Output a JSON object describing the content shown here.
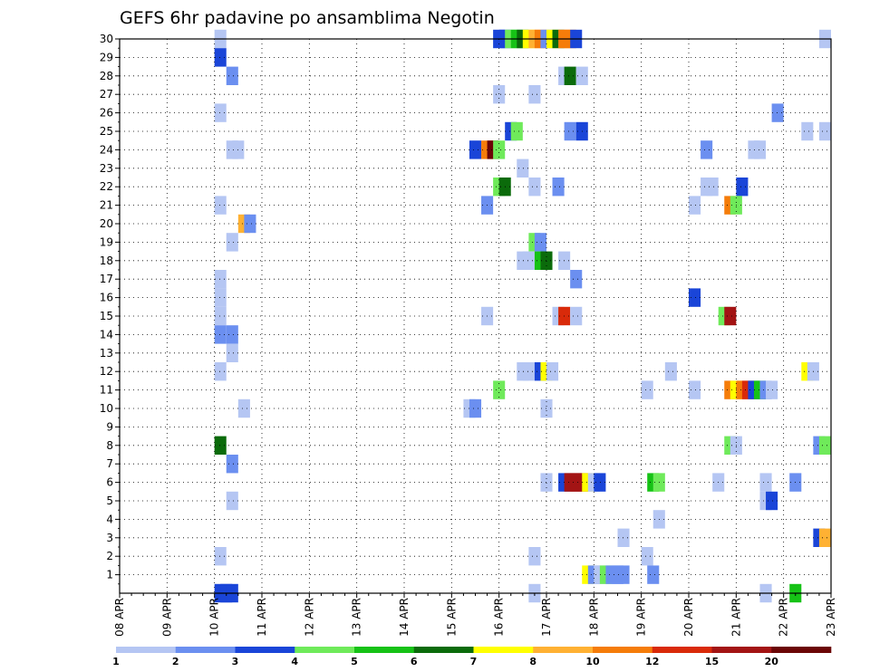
{
  "chart_data": {
    "type": "heatmap",
    "title": "GEFS 6hr padavine po ansamblima Negotin",
    "x_labels": [
      "08 APR",
      "09 APR",
      "10 APR",
      "11 APR",
      "12 APR",
      "13 APR",
      "14 APR",
      "15 APR",
      "16 APR",
      "17 APR",
      "18 APR",
      "19 APR",
      "20 APR",
      "21 APR",
      "22 APR",
      "23 APR"
    ],
    "x_range_steps": [
      0,
      60
    ],
    "y_labels": [
      "1",
      "2",
      "3",
      "4",
      "5",
      "6",
      "7",
      "8",
      "9",
      "10",
      "11",
      "12",
      "13",
      "14",
      "15",
      "16",
      "17",
      "18",
      "19",
      "20",
      "21",
      "22",
      "23",
      "24",
      "25",
      "26",
      "27",
      "28",
      "29",
      "30"
    ],
    "y_range": [
      0,
      30
    ],
    "grid": true,
    "colorbar": {
      "labels": [
        "1",
        "2",
        "3",
        "4",
        "5",
        "6",
        "7",
        "8",
        "10",
        "12",
        "15",
        "20"
      ],
      "colors": [
        "#b5c6f3",
        "#6b8ff0",
        "#1a45d8",
        "#6fea5a",
        "#16c216",
        "#0b6b0b",
        "#ffff00",
        "#ffb133",
        "#f57c0a",
        "#d92a0a",
        "#a31414",
        "#6b0606"
      ]
    },
    "cells": [
      [
        30,
        8.5,
        0
      ],
      [
        30,
        32,
        2
      ],
      [
        30,
        32.5,
        2
      ],
      [
        30,
        33,
        3
      ],
      [
        30,
        33.5,
        4
      ],
      [
        30,
        34,
        5
      ],
      [
        30,
        34.5,
        6
      ],
      [
        30,
        35,
        7
      ],
      [
        30,
        35.5,
        8
      ],
      [
        30,
        36,
        1
      ],
      [
        30,
        36.5,
        6
      ],
      [
        30,
        37,
        5
      ],
      [
        30,
        37.5,
        8
      ],
      [
        30,
        38,
        8
      ],
      [
        30,
        38.5,
        2
      ],
      [
        30,
        59.5,
        0
      ],
      [
        29,
        8.5,
        2
      ],
      [
        28,
        9.5,
        1
      ],
      [
        28,
        37.5,
        0
      ],
      [
        28,
        38,
        5
      ],
      [
        28,
        39,
        0
      ],
      [
        27,
        32,
        0
      ],
      [
        27,
        35,
        0
      ],
      [
        26,
        8.5,
        0
      ],
      [
        26,
        55.5,
        1
      ],
      [
        25,
        33,
        2
      ],
      [
        25,
        33.5,
        3
      ],
      [
        25,
        38,
        1
      ],
      [
        25,
        39,
        2
      ],
      [
        25,
        58,
        0
      ],
      [
        25,
        59.5,
        0
      ],
      [
        24,
        9.5,
        0
      ],
      [
        24,
        10,
        0
      ],
      [
        24,
        30,
        2
      ],
      [
        24,
        31,
        8
      ],
      [
        24,
        31.5,
        11
      ],
      [
        24,
        32,
        3
      ],
      [
        24,
        49.5,
        1
      ],
      [
        24,
        53.5,
        0
      ],
      [
        24,
        54,
        0
      ],
      [
        23,
        34,
        0
      ],
      [
        22,
        32,
        3
      ],
      [
        22,
        32.5,
        5
      ],
      [
        22,
        35,
        0
      ],
      [
        22,
        37,
        1
      ],
      [
        22,
        49.5,
        0
      ],
      [
        22,
        50,
        0
      ],
      [
        22,
        52.5,
        2
      ],
      [
        21,
        8.5,
        0
      ],
      [
        21,
        31,
        1
      ],
      [
        21,
        48.5,
        0
      ],
      [
        21,
        51.5,
        8
      ],
      [
        21,
        52,
        3
      ],
      [
        20,
        10.5,
        7
      ],
      [
        20,
        11,
        1
      ],
      [
        19,
        9.5,
        0
      ],
      [
        19,
        35,
        3
      ],
      [
        19,
        35.5,
        1
      ],
      [
        18,
        34,
        0
      ],
      [
        18,
        34.5,
        0
      ],
      [
        18,
        35.5,
        4
      ],
      [
        18,
        36,
        5
      ],
      [
        18,
        37.5,
        0
      ],
      [
        17,
        8.5,
        0
      ],
      [
        17,
        38.5,
        1
      ],
      [
        16,
        8.5,
        0
      ],
      [
        16,
        48.5,
        2
      ],
      [
        15,
        8.5,
        0
      ],
      [
        15,
        31,
        0
      ],
      [
        15,
        37,
        0
      ],
      [
        15,
        37.5,
        9
      ],
      [
        15,
        38.5,
        0
      ],
      [
        15,
        51,
        3
      ],
      [
        15,
        51.5,
        10
      ],
      [
        14,
        8.5,
        1
      ],
      [
        14,
        9.5,
        1
      ],
      [
        13,
        9.5,
        0
      ],
      [
        12,
        8.5,
        0
      ],
      [
        12,
        34,
        0
      ],
      [
        12,
        34.5,
        0
      ],
      [
        12,
        35.5,
        2
      ],
      [
        12,
        36,
        6
      ],
      [
        12,
        36.5,
        0
      ],
      [
        12,
        46.5,
        0
      ],
      [
        12,
        58,
        6
      ],
      [
        12,
        58.5,
        0
      ],
      [
        11,
        32,
        3
      ],
      [
        11,
        44.5,
        0
      ],
      [
        11,
        48.5,
        0
      ],
      [
        11,
        51.5,
        8
      ],
      [
        11,
        52,
        6
      ],
      [
        11,
        52.5,
        8
      ],
      [
        11,
        53,
        9
      ],
      [
        11,
        53.5,
        2
      ],
      [
        11,
        54,
        4
      ],
      [
        11,
        54.5,
        1
      ],
      [
        11,
        55,
        0
      ],
      [
        10,
        10.5,
        0
      ],
      [
        10,
        29.5,
        0
      ],
      [
        10,
        30,
        1
      ],
      [
        10,
        36,
        0
      ],
      [
        8,
        8.5,
        5
      ],
      [
        8,
        51.5,
        3
      ],
      [
        8,
        52,
        0
      ],
      [
        8,
        59,
        1
      ],
      [
        8,
        59.5,
        3
      ],
      [
        7,
        9.5,
        1
      ],
      [
        6,
        36,
        0
      ],
      [
        6,
        37.5,
        2
      ],
      [
        6,
        38,
        10
      ],
      [
        6,
        38.5,
        10
      ],
      [
        6,
        39,
        10
      ],
      [
        6,
        39.5,
        6
      ],
      [
        6,
        40,
        0
      ],
      [
        6,
        40.5,
        2
      ],
      [
        6,
        45,
        4
      ],
      [
        6,
        45.5,
        3
      ],
      [
        6,
        50.5,
        0
      ],
      [
        6,
        54.5,
        0
      ],
      [
        6,
        57,
        1
      ],
      [
        5,
        9.5,
        0
      ],
      [
        5,
        54.5,
        0
      ],
      [
        5,
        55,
        2
      ],
      [
        4,
        45.5,
        0
      ],
      [
        3,
        42.5,
        0
      ],
      [
        3,
        59,
        2
      ],
      [
        3,
        59.5,
        7
      ],
      [
        2,
        8.5,
        0
      ],
      [
        2,
        35,
        0
      ],
      [
        2,
        44.5,
        0
      ],
      [
        1,
        39.5,
        6
      ],
      [
        1,
        40,
        1
      ],
      [
        1,
        40.5,
        0
      ],
      [
        1,
        41,
        3
      ],
      [
        1,
        41.5,
        1
      ],
      [
        1,
        42,
        1
      ],
      [
        1,
        42.5,
        1
      ],
      [
        1,
        45,
        1
      ],
      [
        0,
        8.5,
        2
      ],
      [
        0,
        9,
        2
      ],
      [
        0,
        9.5,
        2
      ],
      [
        0,
        35,
        0
      ],
      [
        0,
        54.5,
        0
      ],
      [
        0,
        57,
        4
      ]
    ]
  }
}
